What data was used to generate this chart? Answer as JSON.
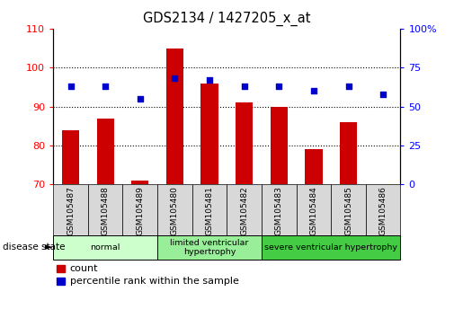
{
  "title": "GDS2134 / 1427205_x_at",
  "samples": [
    "GSM105487",
    "GSM105488",
    "GSM105489",
    "GSM105480",
    "GSM105481",
    "GSM105482",
    "GSM105483",
    "GSM105484",
    "GSM105485",
    "GSM105486"
  ],
  "counts": [
    84,
    87,
    71,
    105,
    96,
    91,
    90,
    79,
    86,
    70
  ],
  "percentiles": [
    63,
    63,
    55,
    68,
    67,
    63,
    63,
    60,
    63,
    58
  ],
  "ylim_left": [
    70,
    110
  ],
  "ylim_right": [
    0,
    100
  ],
  "yticks_left": [
    70,
    80,
    90,
    100,
    110
  ],
  "yticks_right": [
    0,
    25,
    50,
    75,
    100
  ],
  "bar_color": "#cc0000",
  "dot_color": "#0000cc",
  "groups": [
    {
      "label": "normal",
      "indices": [
        0,
        1,
        2
      ],
      "color": "#ccffcc"
    },
    {
      "label": "limited ventricular\nhypertrophy",
      "indices": [
        3,
        4,
        5
      ],
      "color": "#99ee99"
    },
    {
      "label": "severe ventricular hypertrophy",
      "indices": [
        6,
        7,
        8,
        9
      ],
      "color": "#44cc44"
    }
  ],
  "disease_state_label": "disease state",
  "legend_count_label": "count",
  "legend_percentile_label": "percentile rank within the sample",
  "tick_bg_color": "#d8d8d8",
  "bar_width": 0.5,
  "right_ytick_labels": [
    "0",
    "25",
    "50",
    "75",
    "100%"
  ]
}
